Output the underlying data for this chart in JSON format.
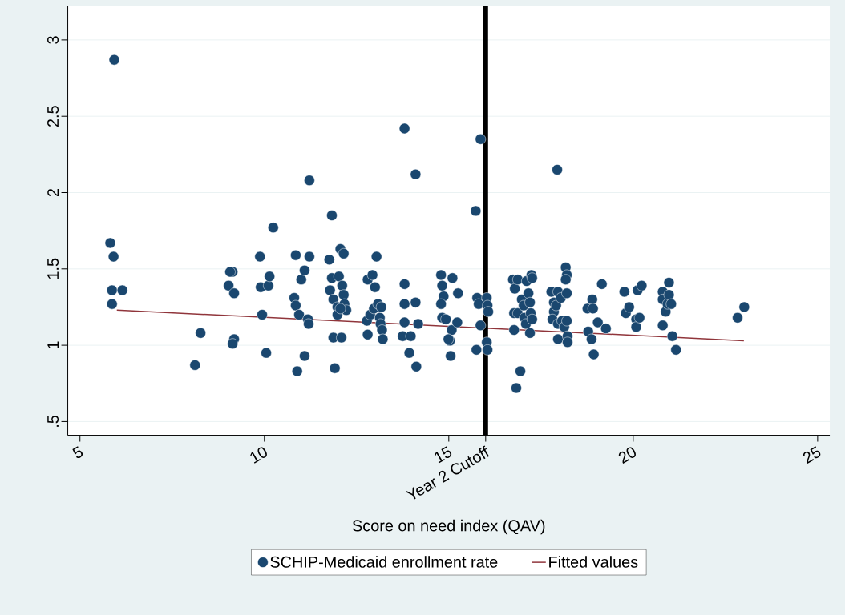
{
  "chart_data": {
    "type": "scatter",
    "xlabel": "Score on need index (QAV)",
    "xlim": [
      4.67,
      25.33
    ],
    "ylim": [
      0.41,
      3.22
    ],
    "xticks": [
      5,
      10,
      15,
      {
        "value": 16,
        "label": "Year 2 Cutoff"
      },
      20,
      25
    ],
    "yticks": [
      {
        "value": 0.5,
        "label": ".5"
      },
      1,
      1.5,
      2,
      2.5,
      3
    ],
    "grid": "y",
    "legend": "bottom",
    "ref_lines": [
      {
        "axis": "x",
        "value": 16,
        "color": "#000000"
      }
    ],
    "series": [
      {
        "name": "SCHIP-Medicaid enrollment rate",
        "color": "#1a476f",
        "marker": "circle",
        "x": [
          5.93,
          5.82,
          5.91,
          5.87,
          6.15,
          5.87,
          8.12,
          8.27,
          9.03,
          9.14,
          9.07,
          9.18,
          9.18,
          9.14,
          9.88,
          9.9,
          10.11,
          10.14,
          9.94,
          10.05,
          10.24,
          10.85,
          10.81,
          10.85,
          10.94,
          10.89,
          11.0,
          11.09,
          11.09,
          11.22,
          11.22,
          11.18,
          11.2,
          11.83,
          11.76,
          11.78,
          11.87,
          11.83,
          11.87,
          11.91,
          11.98,
          11.98,
          12.02,
          12.06,
          12.15,
          12.11,
          12.15,
          12.17,
          12.22,
          12.09,
          12.06,
          12.8,
          12.78,
          12.8,
          12.93,
          13.04,
          13.0,
          12.87,
          12.97,
          13.08,
          13.13,
          13.15,
          13.19,
          13.17,
          13.21,
          13.8,
          13.8,
          13.8,
          13.8,
          13.75,
          13.93,
          13.97,
          14.1,
          14.1,
          14.17,
          14.12,
          14.79,
          14.82,
          14.86,
          14.79,
          14.82,
          14.92,
          15.03,
          15.05,
          15.1,
          15.08,
          15.23,
          15.25,
          14.99,
          15.73,
          15.86,
          15.77,
          15.81,
          15.86,
          15.75,
          16.03,
          16.05,
          16.07,
          16.03,
          16.05,
          16.74,
          16.79,
          16.87,
          16.77,
          16.87,
          16.77,
          16.83,
          16.94,
          16.98,
          17.03,
          17.05,
          17.09,
          17.11,
          17.16,
          17.2,
          17.24,
          17.22,
          17.2,
          17.26,
          17.26,
          17.78,
          17.85,
          17.85,
          17.91,
          17.96,
          17.94,
          17.81,
          17.96,
          17.96,
          18.04,
          18.07,
          18.13,
          18.17,
          18.2,
          18.17,
          18.2,
          18.2,
          18.22,
          18.22,
          18.76,
          18.89,
          18.91,
          18.78,
          18.87,
          18.93,
          19.04,
          19.15,
          19.26,
          19.76,
          19.8,
          19.89,
          20.08,
          20.08,
          20.12,
          20.17,
          20.23,
          20.8,
          20.8,
          20.8,
          20.88,
          20.93,
          20.97,
          20.97,
          21.03,
          21.06,
          21.16,
          22.83,
          23.01
        ],
        "values": [
          2.87,
          1.67,
          1.58,
          1.36,
          1.36,
          1.27,
          0.87,
          1.08,
          1.39,
          1.48,
          1.48,
          1.34,
          1.04,
          1.01,
          1.58,
          1.38,
          1.39,
          1.45,
          1.2,
          0.95,
          1.77,
          1.59,
          1.31,
          1.26,
          1.2,
          0.83,
          1.43,
          1.49,
          0.93,
          2.08,
          1.58,
          1.17,
          1.14,
          1.85,
          1.56,
          1.36,
          1.3,
          1.44,
          1.05,
          0.85,
          1.25,
          1.2,
          1.45,
          1.63,
          1.6,
          1.39,
          1.33,
          1.27,
          1.23,
          1.05,
          1.24,
          1.43,
          1.16,
          1.07,
          1.46,
          1.58,
          1.38,
          1.2,
          1.24,
          1.27,
          1.18,
          1.14,
          1.1,
          1.25,
          1.04,
          2.42,
          1.4,
          1.27,
          1.15,
          1.06,
          0.95,
          1.06,
          2.12,
          1.28,
          1.14,
          0.86,
          1.46,
          1.39,
          1.32,
          1.27,
          1.18,
          1.17,
          1.03,
          0.93,
          1.44,
          1.1,
          1.15,
          1.34,
          1.04,
          1.88,
          2.35,
          1.31,
          1.27,
          1.13,
          0.97,
          1.31,
          1.26,
          1.22,
          1.02,
          0.97,
          1.43,
          1.37,
          1.43,
          1.21,
          1.21,
          1.1,
          0.72,
          0.83,
          1.3,
          1.26,
          1.18,
          1.14,
          1.42,
          1.34,
          1.28,
          1.46,
          1.21,
          1.08,
          1.44,
          1.17,
          1.35,
          1.28,
          1.22,
          1.26,
          1.35,
          2.15,
          1.17,
          1.14,
          1.04,
          1.31,
          1.16,
          1.12,
          1.51,
          1.46,
          1.43,
          1.34,
          1.16,
          1.06,
          1.02,
          1.24,
          1.3,
          1.24,
          1.09,
          1.04,
          0.94,
          1.15,
          1.4,
          1.11,
          1.35,
          1.21,
          1.25,
          1.17,
          1.12,
          1.36,
          1.18,
          1.39,
          1.35,
          1.3,
          1.13,
          1.22,
          1.27,
          1.41,
          1.33,
          1.27,
          1.06,
          0.97,
          1.18,
          1.25
        ]
      },
      {
        "name": "Fitted values",
        "type": "line",
        "color": "#90353b",
        "marker": "none",
        "x": [
          6.0,
          23.0
        ],
        "values": [
          1.23,
          1.03
        ]
      }
    ]
  }
}
